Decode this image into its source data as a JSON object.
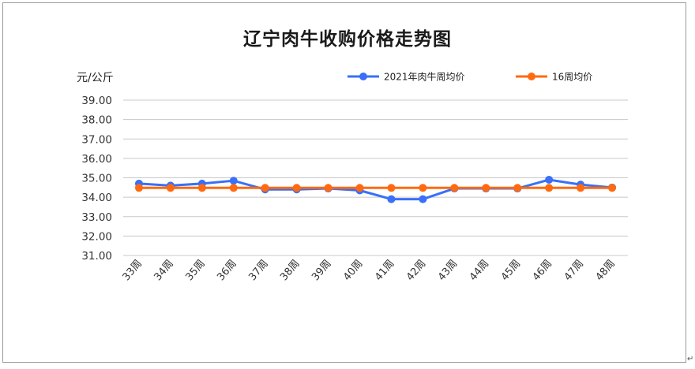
{
  "chart_data": {
    "type": "line",
    "title": "辽宁肉牛收购价格走势图",
    "ylabel": "元/公斤",
    "xlabel": "",
    "categories": [
      "33周",
      "34周",
      "35周",
      "36周",
      "37周",
      "38周",
      "39周",
      "40周",
      "41周",
      "42周",
      "43周",
      "44周",
      "45周",
      "46周",
      "47周",
      "48周"
    ],
    "ylim": [
      31.0,
      39.0
    ],
    "yticks": [
      "31.00",
      "32.00",
      "33.00",
      "34.00",
      "35.00",
      "36.00",
      "37.00",
      "38.00",
      "39.00"
    ],
    "grid": true,
    "legend_position": "top-right",
    "series": [
      {
        "name": "2021年肉牛周均价",
        "color": "#3a6ff7",
        "values": [
          34.7,
          34.6,
          34.7,
          34.85,
          34.4,
          34.4,
          34.45,
          34.35,
          33.9,
          33.9,
          34.45,
          34.45,
          34.45,
          34.9,
          34.65,
          34.5
        ]
      },
      {
        "name": "16周均价",
        "color": "#ff6a10",
        "values": [
          34.48,
          34.48,
          34.48,
          34.48,
          34.48,
          34.48,
          34.48,
          34.48,
          34.48,
          34.48,
          34.48,
          34.48,
          34.48,
          34.48,
          34.48,
          34.48
        ]
      }
    ]
  },
  "corner_mark": "↵"
}
